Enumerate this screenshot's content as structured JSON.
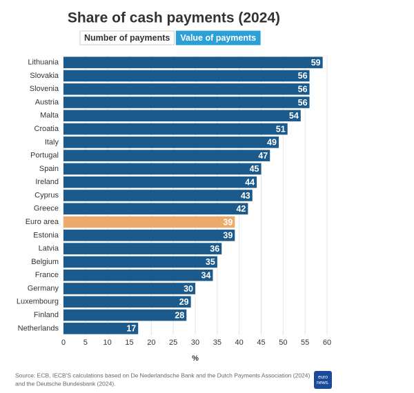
{
  "chart_data": {
    "type": "hbar",
    "title": "Share of cash payments (2024)",
    "tabs": [
      "Number of payments",
      "Value of payments"
    ],
    "active_tab": 1,
    "categories": [
      "Lithuania",
      "Slovakia",
      "Slovenia",
      "Austria",
      "Malta",
      "Croatia",
      "Italy",
      "Portugal",
      "Spain",
      "Ireland",
      "Cyprus",
      "Greece",
      "Euro area",
      "Estonia",
      "Latvia",
      "Belgium",
      "France",
      "Germany",
      "Luxembourg",
      "Finland",
      "Netherlands"
    ],
    "values": [
      59,
      56,
      56,
      56,
      54,
      51,
      49,
      47,
      45,
      44,
      43,
      42,
      39,
      39,
      36,
      35,
      34,
      30,
      29,
      28,
      17
    ],
    "colors": [
      "#1b5a8a",
      "#1b5a8a",
      "#1b5a8a",
      "#1b5a8a",
      "#1b5a8a",
      "#1b5a8a",
      "#1b5a8a",
      "#1b5a8a",
      "#1b5a8a",
      "#1b5a8a",
      "#1b5a8a",
      "#1b5a8a",
      "#eeaa6c",
      "#1b5a8a",
      "#1b5a8a",
      "#1b5a8a",
      "#1b5a8a",
      "#1b5a8a",
      "#1b5a8a",
      "#1b5a8a",
      "#1b5a8a"
    ],
    "xlabel": "%",
    "xlim": [
      0,
      60
    ],
    "xticks": [
      0,
      5,
      10,
      15,
      20,
      25,
      30,
      35,
      40,
      45,
      50,
      55,
      60
    ],
    "grid": true,
    "source": [
      "Source: ECB, IECB'S calculations based on De Nederlandsche Bank and the Dutch Payments Association (2024)",
      "and the Deutsche Bundesbank (2024)."
    ],
    "logo": [
      "euro",
      "news."
    ]
  }
}
